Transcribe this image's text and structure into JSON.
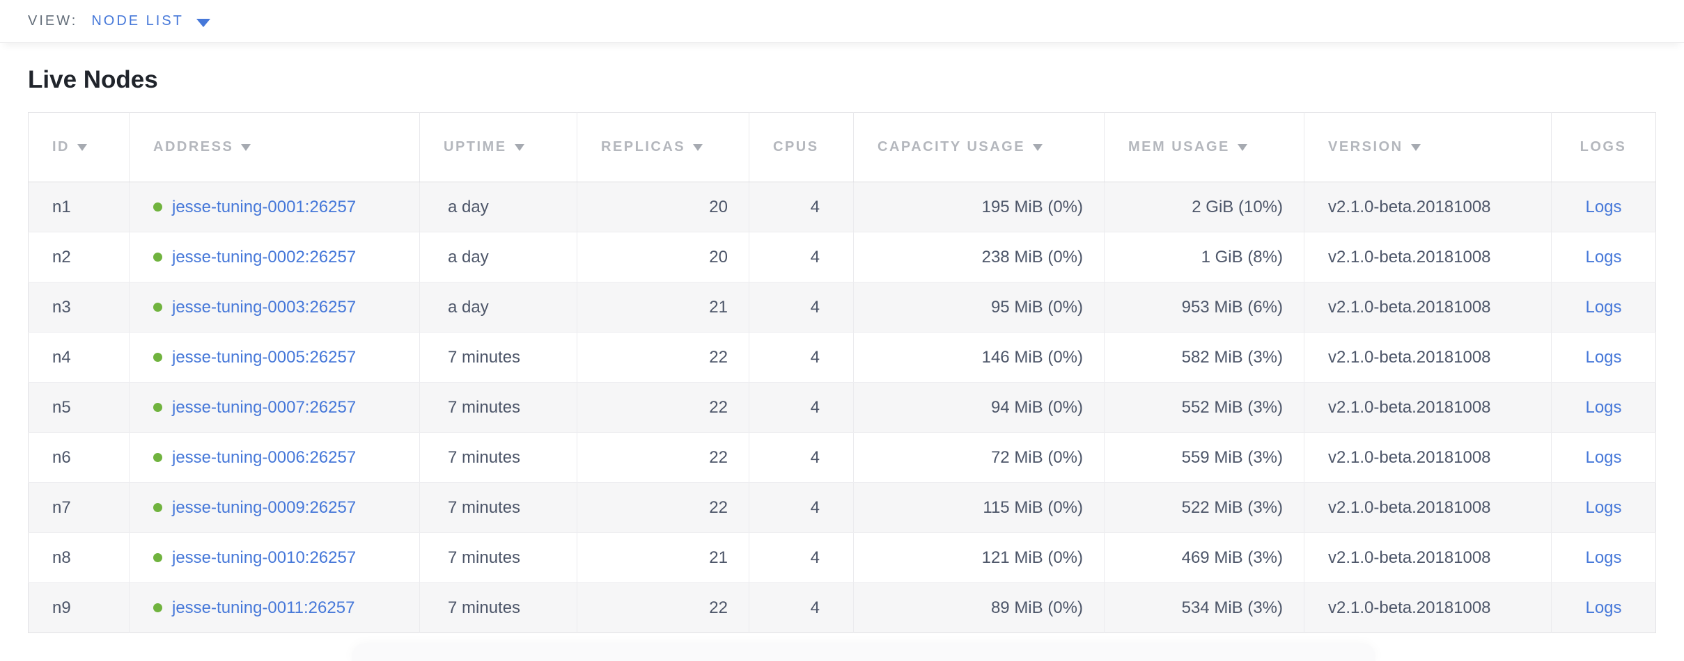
{
  "view_bar": {
    "label": "VIEW:",
    "selected": "NODE LIST"
  },
  "page": {
    "title": "Live Nodes"
  },
  "table": {
    "columns": [
      {
        "label": "ID",
        "sortable": true
      },
      {
        "label": "ADDRESS",
        "sortable": true
      },
      {
        "label": "UPTIME",
        "sortable": true
      },
      {
        "label": "REPLICAS",
        "sortable": true
      },
      {
        "label": "CPUS",
        "sortable": false
      },
      {
        "label": "CAPACITY USAGE",
        "sortable": true
      },
      {
        "label": "MEM USAGE",
        "sortable": true
      },
      {
        "label": "VERSION",
        "sortable": true
      },
      {
        "label": "LOGS",
        "sortable": false
      }
    ],
    "rows": [
      {
        "id": "n1",
        "status": "live",
        "address": "jesse-tuning-0001:26257",
        "uptime": "a day",
        "replicas": "20",
        "cpus": "4",
        "capacity_usage": "195 MiB (0%)",
        "mem_usage": "2 GiB (10%)",
        "version": "v2.1.0-beta.20181008",
        "logs_label": "Logs"
      },
      {
        "id": "n2",
        "status": "live",
        "address": "jesse-tuning-0002:26257",
        "uptime": "a day",
        "replicas": "20",
        "cpus": "4",
        "capacity_usage": "238 MiB (0%)",
        "mem_usage": "1 GiB (8%)",
        "version": "v2.1.0-beta.20181008",
        "logs_label": "Logs"
      },
      {
        "id": "n3",
        "status": "live",
        "address": "jesse-tuning-0003:26257",
        "uptime": "a day",
        "replicas": "21",
        "cpus": "4",
        "capacity_usage": "95 MiB (0%)",
        "mem_usage": "953 MiB (6%)",
        "version": "v2.1.0-beta.20181008",
        "logs_label": "Logs"
      },
      {
        "id": "n4",
        "status": "live",
        "address": "jesse-tuning-0005:26257",
        "uptime": "7 minutes",
        "replicas": "22",
        "cpus": "4",
        "capacity_usage": "146 MiB (0%)",
        "mem_usage": "582 MiB (3%)",
        "version": "v2.1.0-beta.20181008",
        "logs_label": "Logs"
      },
      {
        "id": "n5",
        "status": "live",
        "address": "jesse-tuning-0007:26257",
        "uptime": "7 minutes",
        "replicas": "22",
        "cpus": "4",
        "capacity_usage": "94 MiB (0%)",
        "mem_usage": "552 MiB (3%)",
        "version": "v2.1.0-beta.20181008",
        "logs_label": "Logs"
      },
      {
        "id": "n6",
        "status": "live",
        "address": "jesse-tuning-0006:26257",
        "uptime": "7 minutes",
        "replicas": "22",
        "cpus": "4",
        "capacity_usage": "72 MiB (0%)",
        "mem_usage": "559 MiB (3%)",
        "version": "v2.1.0-beta.20181008",
        "logs_label": "Logs"
      },
      {
        "id": "n7",
        "status": "live",
        "address": "jesse-tuning-0009:26257",
        "uptime": "7 minutes",
        "replicas": "22",
        "cpus": "4",
        "capacity_usage": "115 MiB (0%)",
        "mem_usage": "522 MiB (3%)",
        "version": "v2.1.0-beta.20181008",
        "logs_label": "Logs"
      },
      {
        "id": "n8",
        "status": "live",
        "address": "jesse-tuning-0010:26257",
        "uptime": "7 minutes",
        "replicas": "21",
        "cpus": "4",
        "capacity_usage": "121 MiB (0%)",
        "mem_usage": "469 MiB (3%)",
        "version": "v2.1.0-beta.20181008",
        "logs_label": "Logs"
      },
      {
        "id": "n9",
        "status": "live",
        "address": "jesse-tuning-0011:26257",
        "uptime": "7 minutes",
        "replicas": "22",
        "cpus": "4",
        "capacity_usage": "89 MiB (0%)",
        "mem_usage": "534 MiB (3%)",
        "version": "v2.1.0-beta.20181008",
        "logs_label": "Logs"
      }
    ]
  },
  "colors": {
    "link_blue": "#4678d9",
    "live_status_green": "#70b33e",
    "header_text_gray": "#b4b7bd",
    "body_text_slate": "#4d5669",
    "zebra_row_gray": "#f6f6f7"
  }
}
